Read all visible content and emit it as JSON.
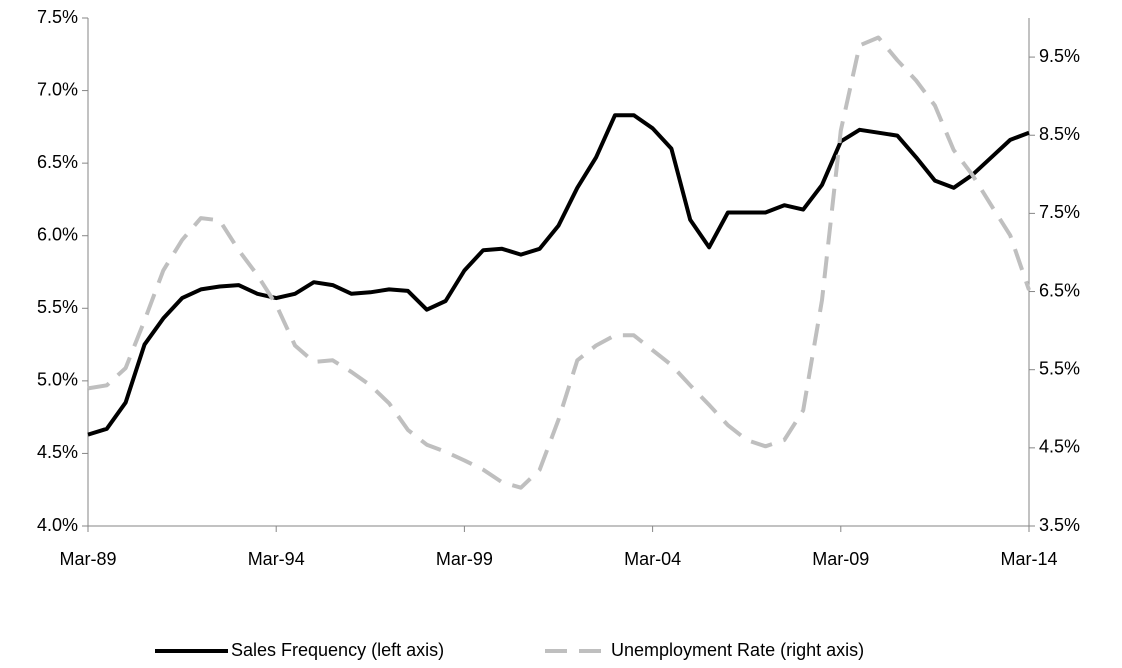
{
  "chart_data": {
    "type": "line",
    "x": [
      "1989-03",
      "1989-09",
      "1990-03",
      "1990-09",
      "1991-03",
      "1991-09",
      "1992-03",
      "1992-09",
      "1993-03",
      "1993-09",
      "1994-03",
      "1994-09",
      "1995-03",
      "1995-09",
      "1996-03",
      "1996-09",
      "1997-03",
      "1997-09",
      "1998-03",
      "1998-09",
      "1999-03",
      "1999-09",
      "2000-03",
      "2000-09",
      "2001-03",
      "2001-09",
      "2002-03",
      "2002-09",
      "2003-03",
      "2003-09",
      "2004-03",
      "2004-09",
      "2005-03",
      "2005-09",
      "2006-03",
      "2006-09",
      "2007-03",
      "2007-09",
      "2008-03",
      "2008-09",
      "2009-03",
      "2009-09",
      "2010-03",
      "2010-09",
      "2011-03",
      "2011-09",
      "2012-03",
      "2012-09",
      "2013-03",
      "2013-09",
      "2014-03"
    ],
    "series": [
      {
        "name": "Sales Frequency (left axis)",
        "color": "#000000",
        "dash": false,
        "axis": "y",
        "values": [
          4.63,
          4.67,
          4.85,
          5.25,
          5.43,
          5.57,
          5.63,
          5.65,
          5.66,
          5.6,
          5.57,
          5.6,
          5.68,
          5.66,
          5.6,
          5.61,
          5.63,
          5.62,
          5.49,
          5.55,
          5.76,
          5.9,
          5.91,
          5.87,
          5.91,
          6.07,
          6.33,
          6.54,
          6.83,
          6.83,
          6.74,
          6.6,
          6.11,
          5.92,
          6.16,
          6.16,
          6.16,
          6.21,
          6.18,
          6.35,
          6.65,
          6.73,
          6.71,
          6.69,
          6.54,
          6.38,
          6.33,
          6.42,
          6.54,
          6.66,
          6.71
        ]
      },
      {
        "name": "Unemployment Rate (right axis)",
        "color": "#bfbfbf",
        "dash": true,
        "axis": "y2",
        "values": [
          5.26,
          5.3,
          5.52,
          6.13,
          6.77,
          7.16,
          7.44,
          7.41,
          7.03,
          6.71,
          6.33,
          5.81,
          5.6,
          5.62,
          5.47,
          5.3,
          5.07,
          4.73,
          4.54,
          4.45,
          4.34,
          4.22,
          4.06,
          3.99,
          4.22,
          4.86,
          5.62,
          5.81,
          5.94,
          5.94,
          5.75,
          5.56,
          5.3,
          5.05,
          4.79,
          4.6,
          4.52,
          4.6,
          4.98,
          6.39,
          8.56,
          9.65,
          9.75,
          9.46,
          9.2,
          8.88,
          8.31,
          7.99,
          7.6,
          7.22,
          6.52
        ]
      }
    ],
    "xlim": [
      "1989-03",
      "2014-03"
    ],
    "xticks": [
      {
        "value": "1989-03",
        "label": "Mar-89"
      },
      {
        "value": "1994-03",
        "label": "Mar-94"
      },
      {
        "value": "1999-03",
        "label": "Mar-99"
      },
      {
        "value": "2004-03",
        "label": "Mar-04"
      },
      {
        "value": "2009-03",
        "label": "Mar-09"
      },
      {
        "value": "2014-03",
        "label": "Mar-14"
      }
    ],
    "ylim": [
      4.0,
      7.5
    ],
    "yticks": [
      {
        "value": 4.0,
        "label": "4.0%"
      },
      {
        "value": 4.5,
        "label": "4.5%"
      },
      {
        "value": 5.0,
        "label": "5.0%"
      },
      {
        "value": 5.5,
        "label": "5.5%"
      },
      {
        "value": 6.0,
        "label": "6.0%"
      },
      {
        "value": 6.5,
        "label": "6.5%"
      },
      {
        "value": 7.0,
        "label": "7.0%"
      },
      {
        "value": 7.5,
        "label": "7.5%"
      }
    ],
    "y2lim": [
      3.5,
      10.0
    ],
    "y2ticks": [
      {
        "value": 3.5,
        "label": "3.5%"
      },
      {
        "value": 4.5,
        "label": "4.5%"
      },
      {
        "value": 5.5,
        "label": "5.5%"
      },
      {
        "value": 6.5,
        "label": "6.5%"
      },
      {
        "value": 7.5,
        "label": "7.5%"
      },
      {
        "value": 8.5,
        "label": "8.5%"
      },
      {
        "value": 9.5,
        "label": "9.5%"
      }
    ],
    "legend": "bottom"
  }
}
